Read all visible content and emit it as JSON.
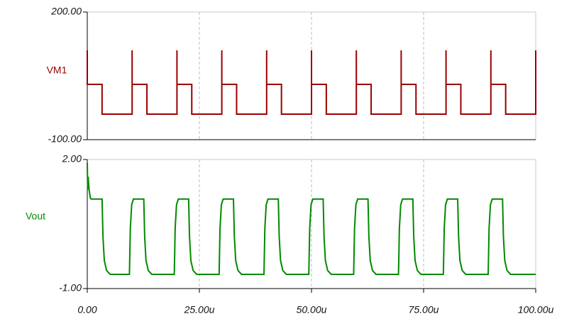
{
  "chart_data": {
    "type": "line",
    "xlim": [
      0,
      100
    ],
    "xticks": [
      {
        "value": 0,
        "label": "0.00"
      },
      {
        "value": 25,
        "label": "25.00u"
      },
      {
        "value": 50,
        "label": "50.00u"
      },
      {
        "value": 75,
        "label": "75.00u"
      },
      {
        "value": 100,
        "label": "100.00u"
      }
    ],
    "grid": true,
    "panels": [
      {
        "ylim": [
          -100,
          200
        ],
        "yticks": [
          {
            "value": 200,
            "label": "200.00"
          },
          {
            "value": -100,
            "label": "-100.00"
          }
        ],
        "series": [
          {
            "name": "VM1",
            "color": "#990000",
            "x": [
              0,
              0,
              3.3,
              3.3,
              10,
              10,
              10,
              13.3,
              13.3,
              20,
              20,
              20,
              23.3,
              23.3,
              30,
              30,
              30,
              33.3,
              33.3,
              40,
              40,
              40,
              43.3,
              43.3,
              50,
              50,
              50,
              53.3,
              53.3,
              60,
              60,
              60,
              63.3,
              63.3,
              70,
              70,
              70,
              73.3,
              73.3,
              80,
              80,
              80,
              83.3,
              83.3,
              90,
              90,
              90,
              93.3,
              93.3,
              100,
              100
            ],
            "values": [
              110,
              30,
              30,
              -40,
              -40,
              110,
              30,
              30,
              -40,
              -40,
              110,
              30,
              30,
              -40,
              -40,
              110,
              30,
              30,
              -40,
              -40,
              110,
              30,
              30,
              -40,
              -40,
              110,
              30,
              30,
              -40,
              -40,
              110,
              30,
              30,
              -40,
              -40,
              110,
              30,
              30,
              -40,
              -40,
              110,
              30,
              30,
              -40,
              -40,
              110,
              30,
              30,
              -40,
              -40,
              110
            ]
          }
        ]
      },
      {
        "ylim": [
          -1,
          2
        ],
        "yticks": [
          {
            "value": 2,
            "label": "2.00"
          },
          {
            "value": -1,
            "label": "-1.00"
          }
        ],
        "series": [
          {
            "name": "Vout",
            "color": "#008a00",
            "x": [
              0,
              0.1,
              0.2,
              0.4,
              0.7,
              0.9,
              3.3,
              3.5,
              3.8,
              4.3,
              5.1,
              9.4,
              9.6,
              9.9,
              10.3,
              12.6,
              12.8,
              13.1,
              13.6,
              14.4,
              19.4,
              19.6,
              19.9,
              20.3,
              22.6,
              22.8,
              23.1,
              23.6,
              24.4,
              29.4,
              29.6,
              29.9,
              30.3,
              32.6,
              32.8,
              33.1,
              33.6,
              34.4,
              39.4,
              39.6,
              39.9,
              40.3,
              42.6,
              42.8,
              43.1,
              43.6,
              44.4,
              49.4,
              49.6,
              49.9,
              50.3,
              52.6,
              52.8,
              53.1,
              53.6,
              54.4,
              59.4,
              59.6,
              59.9,
              60.3,
              62.6,
              62.8,
              63.1,
              63.6,
              64.4,
              69.4,
              69.6,
              69.9,
              70.3,
              72.6,
              72.8,
              73.1,
              73.6,
              74.4,
              79.4,
              79.6,
              79.9,
              80.3,
              82.6,
              82.8,
              83.1,
              83.6,
              84.4,
              89.4,
              89.6,
              89.9,
              90.3,
              92.6,
              92.8,
              93.1,
              93.6,
              94.4,
              100
            ],
            "values": [
              1.92,
              1.3,
              1.6,
              1.3,
              1.1,
              1.08,
              1.08,
              0.2,
              -0.35,
              -0.58,
              -0.67,
              -0.67,
              0.4,
              0.95,
              1.08,
              1.08,
              0.2,
              -0.35,
              -0.58,
              -0.67,
              -0.67,
              0.4,
              0.95,
              1.08,
              1.08,
              0.2,
              -0.35,
              -0.58,
              -0.67,
              -0.67,
              0.4,
              0.95,
              1.08,
              1.08,
              0.2,
              -0.35,
              -0.58,
              -0.67,
              -0.67,
              0.4,
              0.95,
              1.08,
              1.08,
              0.2,
              -0.35,
              -0.58,
              -0.67,
              -0.67,
              0.4,
              0.95,
              1.08,
              1.08,
              0.2,
              -0.35,
              -0.58,
              -0.67,
              -0.67,
              0.4,
              0.95,
              1.08,
              1.08,
              0.2,
              -0.35,
              -0.58,
              -0.67,
              -0.67,
              0.4,
              0.95,
              1.08,
              1.08,
              0.2,
              -0.35,
              -0.58,
              -0.67,
              -0.67,
              0.4,
              0.95,
              1.08,
              1.08,
              0.2,
              -0.35,
              -0.58,
              -0.67,
              -0.67,
              0.4,
              0.95,
              1.08,
              1.08,
              0.2,
              -0.35,
              -0.58,
              -0.67,
              -0.67
            ]
          }
        ]
      }
    ]
  }
}
